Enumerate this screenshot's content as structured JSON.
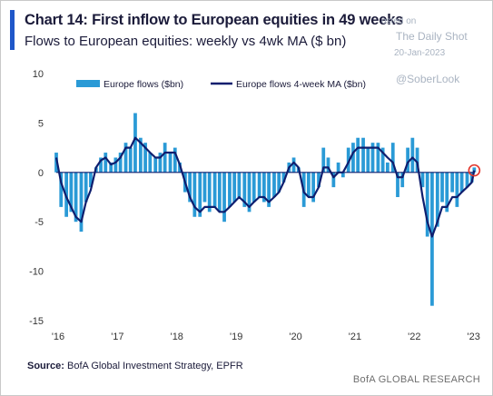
{
  "header": {
    "title": "Chart 14: First inflow to European equities in 49 weeks",
    "subtitle": "Flows to European equities: weekly vs 4wk MA ($ bn)"
  },
  "watermark": {
    "posted": "osted on",
    "site": "The Daily Shot",
    "date": "20-Jan-2023",
    "handle": "@SoberLook"
  },
  "footer": {
    "source_label": "Source:",
    "source_text": " BofA Global Investment Strategy, EPFR",
    "brand": "BofA GLOBAL RESEARCH"
  },
  "colors": {
    "bars": "#2a9ad6",
    "ma_line": "#0f1e6e",
    "zero_line": "#0f1e6e",
    "highlight_circle": "#e2352b",
    "title_accent": "#1f57c9"
  },
  "chart_data": {
    "type": "bar",
    "legend": [
      "Europe flows ($bn)",
      "Europe flows 4-week MA ($bn)"
    ],
    "legend_position": "top",
    "xlabels": [
      "'16",
      "'17",
      "'18",
      "'19",
      "'20",
      "'21",
      "'22",
      "'23"
    ],
    "xlim": [
      2016.0,
      2023.05
    ],
    "ylim": [
      -15,
      10
    ],
    "yticks": [
      10,
      5,
      0,
      -5,
      -10,
      -15
    ],
    "grid": false,
    "series": [
      {
        "name": "Europe flows ($bn)",
        "kind": "bar",
        "x": [
          2016.0,
          2016.08,
          2016.17,
          2016.25,
          2016.33,
          2016.42,
          2016.5,
          2016.58,
          2016.67,
          2016.75,
          2016.83,
          2016.92,
          2017.0,
          2017.08,
          2017.17,
          2017.25,
          2017.33,
          2017.42,
          2017.5,
          2017.58,
          2017.67,
          2017.75,
          2017.83,
          2017.92,
          2018.0,
          2018.08,
          2018.17,
          2018.25,
          2018.33,
          2018.42,
          2018.5,
          2018.58,
          2018.67,
          2018.75,
          2018.83,
          2018.92,
          2019.0,
          2019.08,
          2019.17,
          2019.25,
          2019.33,
          2019.42,
          2019.5,
          2019.58,
          2019.67,
          2019.75,
          2019.83,
          2019.92,
          2020.0,
          2020.08,
          2020.17,
          2020.25,
          2020.33,
          2020.42,
          2020.5,
          2020.58,
          2020.67,
          2020.75,
          2020.83,
          2020.92,
          2021.0,
          2021.08,
          2021.17,
          2021.25,
          2021.33,
          2021.42,
          2021.5,
          2021.58,
          2021.67,
          2021.75,
          2021.83,
          2021.92,
          2022.0,
          2022.08,
          2022.17,
          2022.25,
          2022.33,
          2022.42,
          2022.5,
          2022.58,
          2022.67,
          2022.75,
          2022.83,
          2022.92,
          2023.0,
          2023.04
        ],
        "values": [
          2.0,
          -3.5,
          -4.5,
          -4.0,
          -5.0,
          -6.0,
          -3.0,
          -1.5,
          0.5,
          1.5,
          2.0,
          1.0,
          1.5,
          2.0,
          3.0,
          2.5,
          6.0,
          3.5,
          3.0,
          2.0,
          1.5,
          2.0,
          3.0,
          2.0,
          2.5,
          1.0,
          -2.0,
          -3.0,
          -4.5,
          -4.5,
          -3.0,
          -4.0,
          -3.5,
          -4.0,
          -5.0,
          -3.5,
          -3.0,
          -2.5,
          -3.5,
          -4.0,
          -3.0,
          -2.5,
          -3.0,
          -3.5,
          -2.5,
          -2.0,
          -1.0,
          1.0,
          1.5,
          0.5,
          -3.5,
          -2.5,
          -3.0,
          -1.5,
          2.5,
          1.5,
          -1.5,
          1.0,
          -0.5,
          2.5,
          3.0,
          3.5,
          3.5,
          2.5,
          3.0,
          3.0,
          2.5,
          1.0,
          3.0,
          -2.5,
          -1.5,
          2.5,
          3.5,
          2.5,
          -1.5,
          -6.5,
          -13.5,
          -5.5,
          -3.0,
          -4.0,
          -2.0,
          -3.5,
          -2.0,
          -1.5,
          -1.0,
          0.5
        ]
      },
      {
        "name": "Europe flows 4-week MA ($bn)",
        "kind": "line",
        "x": [
          2016.0,
          2016.08,
          2016.17,
          2016.25,
          2016.33,
          2016.42,
          2016.5,
          2016.58,
          2016.67,
          2016.75,
          2016.83,
          2016.92,
          2017.0,
          2017.08,
          2017.17,
          2017.25,
          2017.33,
          2017.42,
          2017.5,
          2017.58,
          2017.67,
          2017.75,
          2017.83,
          2017.92,
          2018.0,
          2018.08,
          2018.17,
          2018.25,
          2018.33,
          2018.42,
          2018.5,
          2018.58,
          2018.67,
          2018.75,
          2018.83,
          2018.92,
          2019.0,
          2019.08,
          2019.17,
          2019.25,
          2019.33,
          2019.42,
          2019.5,
          2019.58,
          2019.67,
          2019.75,
          2019.83,
          2019.92,
          2020.0,
          2020.08,
          2020.17,
          2020.25,
          2020.33,
          2020.42,
          2020.5,
          2020.58,
          2020.67,
          2020.75,
          2020.83,
          2020.92,
          2021.0,
          2021.08,
          2021.17,
          2021.25,
          2021.33,
          2021.42,
          2021.5,
          2021.58,
          2021.67,
          2021.75,
          2021.83,
          2021.92,
          2022.0,
          2022.08,
          2022.17,
          2022.25,
          2022.33,
          2022.42,
          2022.5,
          2022.58,
          2022.67,
          2022.75,
          2022.83,
          2022.92,
          2023.0,
          2023.04
        ],
        "values": [
          1.5,
          -1.0,
          -2.5,
          -3.5,
          -4.5,
          -5.0,
          -3.0,
          -1.8,
          0.5,
          1.2,
          1.5,
          0.8,
          1.0,
          1.5,
          2.5,
          2.5,
          3.5,
          3.0,
          2.5,
          2.0,
          1.5,
          1.5,
          2.0,
          2.0,
          2.0,
          0.8,
          -1.0,
          -2.5,
          -3.5,
          -4.0,
          -3.5,
          -3.5,
          -3.5,
          -4.0,
          -4.0,
          -3.5,
          -3.0,
          -2.5,
          -3.0,
          -3.5,
          -3.0,
          -2.5,
          -2.5,
          -3.0,
          -2.5,
          -2.0,
          -1.0,
          0.5,
          1.0,
          0.5,
          -2.0,
          -2.5,
          -2.5,
          -1.5,
          0.5,
          0.5,
          -0.5,
          0.0,
          0.0,
          1.0,
          2.0,
          2.5,
          2.5,
          2.5,
          2.5,
          2.5,
          2.0,
          1.5,
          1.0,
          -0.5,
          -0.5,
          1.0,
          1.5,
          1.0,
          -2.5,
          -5.0,
          -6.5,
          -5.0,
          -3.5,
          -3.5,
          -2.5,
          -2.5,
          -2.0,
          -1.5,
          -1.0,
          0.2
        ]
      }
    ],
    "highlight": {
      "x": 2023.04,
      "y": 0.2
    }
  }
}
